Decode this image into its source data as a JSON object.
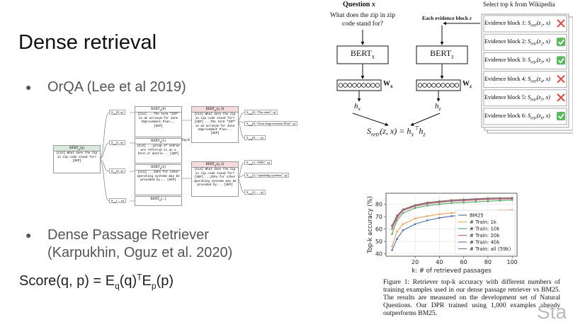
{
  "slide": {
    "title": "Dense retrieval",
    "bullets": [
      [
        "OrQA (Lee et al 2019)"
      ],
      [
        "Dense Passage Retriever",
        "(Karpukhin, Oguz et al. 2020)"
      ]
    ],
    "formula": [
      "Score(q, p) = E",
      {
        "sub": "q"
      },
      "(q)",
      {
        "sup": "T"
      },
      "E",
      {
        "sub": "p"
      },
      "(p)"
    ],
    "watermark": "Sta"
  },
  "orqa": {
    "query": {
      "title": [
        "BERT",
        {
          "sub": "Q"
        },
        "(q)"
      ],
      "text": "[CLS] What does the zip in zip code stand for? [SEP]"
    },
    "retrieval_scores": [
      [
        "S",
        {
          "sub": "retr"
        },
        "(0, q)"
      ],
      [
        "S",
        {
          "sub": "retr"
        },
        "(1, q)"
      ],
      [
        "S",
        {
          "sub": "retr"
        },
        "(2, q)"
      ],
      [
        "S",
        {
          "sub": "retr"
        },
        "(..., q)"
      ]
    ],
    "blocks": [
      {
        "title": [
          "BERT",
          {
            "sub": "B"
          },
          "(0)"
        ],
        "text": "[CLS] ...The term “ZIP” is an acronym for Zone Improvement Plan... [SEP]"
      },
      {
        "title": [
          "BERT",
          {
            "sub": "B"
          },
          "(1)"
        ],
        "text": "[CLS] ...group of zebras are referred to as a herd or dazzle... [SEP]"
      },
      {
        "title": [
          "BERT",
          {
            "sub": "B"
          },
          "(2)"
        ],
        "text": "[CLS] ...ZIPs for other operating systems may be preceded by... [SEP]"
      },
      {
        "title": [
          "BERT",
          {
            "sub": "B"
          },
          "(...)"
        ]
      }
    ],
    "top_k": "Top K",
    "readers": [
      {
        "title": [
          "BERT",
          {
            "sub": "R"
          },
          "(q, 0)"
        ],
        "text": "[CLS] What does the zip in zip code stand for? [SEP] ...The term “ZIP” is an acronym for Zone Improvement Plan... [SEP]"
      },
      {
        "title": [
          "BERT",
          {
            "sub": "R"
          },
          "(q, 2)"
        ],
        "text": "[CLS] What does the zip in zip code stand for? [SEP] ...ZIPs for other operating systems may be preceded by... [SEP]"
      }
    ],
    "spans": [
      [
        [
          "S",
          {
            "sub": "read"
          },
          "(0, “The term”, q)"
        ],
        [
          "S",
          {
            "sub": "read"
          },
          "(0, “Zone Improvement Plan”, q)"
        ],
        [
          "S",
          {
            "sub": "read"
          },
          "(0, ..., q)"
        ]
      ],
      [
        [
          "S",
          {
            "sub": "read"
          },
          "(2, “ZIPs”, q)"
        ],
        [
          "S",
          {
            "sub": "read"
          },
          "(2, “operating systems”, q)"
        ],
        [
          "S",
          {
            "sub": "read"
          },
          "(2, ..., q)"
        ]
      ]
    ]
  },
  "dpr": {
    "question_label": [
      "Question ",
      {
        "i": "x"
      }
    ],
    "question": "What does the zip in zip code stand for?",
    "select_label": "Select top k from Wikipedia",
    "evidence_label": [
      "Each evidence block ",
      {
        "i": "z"
      }
    ],
    "encoder_x": [
      "BERT",
      {
        "sub": "x"
      }
    ],
    "encoder_z": [
      "BERT",
      {
        "sub": "z"
      }
    ],
    "weight_x": [
      "W",
      {
        "sub": "x"
      }
    ],
    "weight_z": [
      "W",
      {
        "sub": "z"
      }
    ],
    "vector_x": [
      "h",
      {
        "sub": "x"
      }
    ],
    "vector_z": [
      "h",
      {
        "sub": "z"
      }
    ],
    "equation": [
      "S",
      {
        "sub": "retr"
      },
      "(z, x) = h",
      {
        "sub": "x"
      },
      {
        "sup": "⊤"
      },
      "h",
      {
        "sub": "z"
      }
    ],
    "evidence_blocks": [
      {
        "label": "Evidence block 1: ",
        "score": [
          "S",
          {
            "sub": "retr"
          },
          "(z",
          {
            "sub": "1"
          },
          ", x)"
        ],
        "relevant": false
      },
      {
        "label": "Evidence block 2: ",
        "score": [
          "S",
          {
            "sub": "retr"
          },
          "(z",
          {
            "sub": "2"
          },
          ", x)"
        ],
        "relevant": true
      },
      {
        "label": "Evidence block 3: ",
        "score": [
          "S",
          {
            "sub": "retr"
          },
          "(z",
          {
            "sub": "3"
          },
          ", x)"
        ],
        "relevant": true
      },
      {
        "label": "Evidence block 4: ",
        "score": [
          "S",
          {
            "sub": "retr"
          },
          "(z",
          {
            "sub": "4"
          },
          ", x)"
        ],
        "relevant": false
      },
      {
        "label": "Evidence block 5: ",
        "score": [
          "S",
          {
            "sub": "retr"
          },
          "(z",
          {
            "sub": "5"
          },
          ", x)"
        ],
        "relevant": false
      },
      {
        "label": "Evidence block 6: ",
        "score": [
          "S",
          {
            "sub": "retr"
          },
          "(z",
          {
            "sub": "6"
          },
          ", x)"
        ],
        "relevant": true
      }
    ]
  },
  "chart_data": {
    "type": "line",
    "xlabel": "k: # of retrieved passages",
    "ylabel": "Top-k accuracy (%)",
    "x": [
      1,
      5,
      10,
      20,
      30,
      40,
      50,
      60,
      70,
      80,
      90,
      100
    ],
    "series": [
      {
        "name": "BM25",
        "color": "#4c72b0",
        "values": [
          43,
          52,
          59,
          64,
          67,
          69,
          70.5,
          71.5,
          72.5,
          73.5,
          74.5,
          75
        ]
      },
      {
        "name": "# Train: 1k",
        "color": "#f0a060",
        "values": [
          46,
          58,
          64,
          68.5,
          70.5,
          72,
          73,
          73.7,
          74.3,
          74.8,
          75.2,
          75.6
        ]
      },
      {
        "name": "# Train: 10k",
        "color": "#55a868",
        "values": [
          56,
          67,
          73,
          77,
          79,
          80,
          81,
          81.5,
          82,
          82.5,
          83,
          83.5
        ]
      },
      {
        "name": "# Train: 20k",
        "color": "#d65f5f",
        "values": [
          60,
          69,
          75,
          78.5,
          80.5,
          81.5,
          82.5,
          83,
          83.5,
          84,
          84.3,
          84.5
        ]
      },
      {
        "name": "# Train: 40k",
        "color": "#8172b2",
        "values": [
          62,
          70,
          75.5,
          79,
          81,
          82,
          83,
          83.5,
          84,
          84.5,
          84.8,
          85
        ]
      },
      {
        "name": "# Train: all (59k)",
        "color": "#937860",
        "values": [
          63,
          71,
          76,
          79.5,
          81.5,
          82.5,
          83.5,
          84,
          84.5,
          85,
          85.2,
          85.4
        ]
      }
    ],
    "xlim": [
      -4,
      104
    ],
    "xticks": [
      20,
      40,
      60,
      80,
      100
    ],
    "ylim": [
      38,
      89
    ],
    "yticks": [
      40,
      50,
      60,
      70,
      80
    ],
    "grid": true,
    "legend": "lower right"
  },
  "caption": "Figure 1: Retriever top-k accuracy with different numbers of training examples used in our dense passage retriever vs BM25. The results are measured on the development set of Natural Questions. Our DPR trained using 1,000 examples already outperforms BM25."
}
